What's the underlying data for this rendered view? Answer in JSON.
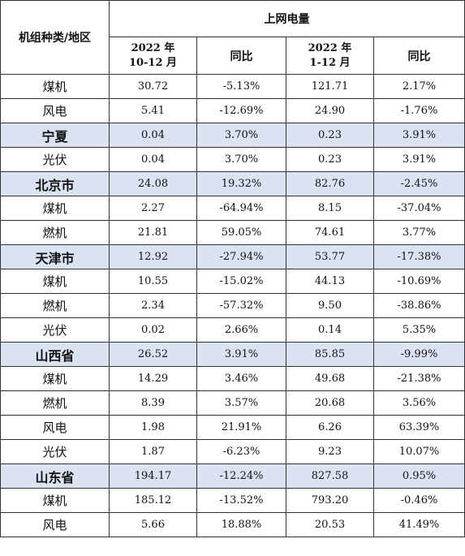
{
  "header": {
    "type_col": "机组种类/地区",
    "group": "上网电量",
    "period1": [
      "2022 年",
      "10-12 月"
    ],
    "yoy1": "同比",
    "period2": [
      "2022 年",
      "1-12 月"
    ],
    "yoy2": "同比"
  },
  "colors": {
    "region_row_bg": "#dbe3f2",
    "border": "#333333"
  },
  "rows": [
    {
      "name": "煤机",
      "region": false,
      "v1": "30.72",
      "y1": "-5.13%",
      "v2": "121.71",
      "y2": "2.17%"
    },
    {
      "name": "风电",
      "region": false,
      "v1": "5.41",
      "y1": "-12.69%",
      "v2": "24.90",
      "y2": "-1.76%"
    },
    {
      "name": "宁夏",
      "region": true,
      "v1": "0.04",
      "y1": "3.70%",
      "v2": "0.23",
      "y2": "3.91%"
    },
    {
      "name": "光伏",
      "region": false,
      "v1": "0.04",
      "y1": "3.70%",
      "v2": "0.23",
      "y2": "3.91%"
    },
    {
      "name": "北京市",
      "region": true,
      "v1": "24.08",
      "y1": "19.32%",
      "v2": "82.76",
      "y2": "-2.45%"
    },
    {
      "name": "煤机",
      "region": false,
      "v1": "2.27",
      "y1": "-64.94%",
      "v2": "8.15",
      "y2": "-37.04%"
    },
    {
      "name": "燃机",
      "region": false,
      "v1": "21.81",
      "y1": "59.05%",
      "v2": "74.61",
      "y2": "3.77%"
    },
    {
      "name": "天津市",
      "region": true,
      "v1": "12.92",
      "y1": "-27.94%",
      "v2": "53.77",
      "y2": "-17.38%"
    },
    {
      "name": "煤机",
      "region": false,
      "v1": "10.55",
      "y1": "-15.02%",
      "v2": "44.13",
      "y2": "-10.69%"
    },
    {
      "name": "燃机",
      "region": false,
      "v1": "2.34",
      "y1": "-57.32%",
      "v2": "9.50",
      "y2": "-38.86%"
    },
    {
      "name": "光伏",
      "region": false,
      "v1": "0.02",
      "y1": "2.66%",
      "v2": "0.14",
      "y2": "5.35%"
    },
    {
      "name": "山西省",
      "region": true,
      "v1": "26.52",
      "y1": "3.91%",
      "v2": "85.85",
      "y2": "-9.99%"
    },
    {
      "name": "煤机",
      "region": false,
      "v1": "14.29",
      "y1": "3.46%",
      "v2": "49.68",
      "y2": "-21.38%"
    },
    {
      "name": "燃机",
      "region": false,
      "v1": "8.39",
      "y1": "3.57%",
      "v2": "20.68",
      "y2": "3.56%"
    },
    {
      "name": "风电",
      "region": false,
      "v1": "1.98",
      "y1": "21.91%",
      "v2": "6.26",
      "y2": "63.39%"
    },
    {
      "name": "光伏",
      "region": false,
      "v1": "1.87",
      "y1": "-6.23%",
      "v2": "9.23",
      "y2": "10.07%"
    },
    {
      "name": "山东省",
      "region": true,
      "v1": "194.17",
      "y1": "-12.24%",
      "v2": "827.58",
      "y2": "0.95%"
    },
    {
      "name": "煤机",
      "region": false,
      "v1": "185.12",
      "y1": "-13.52%",
      "v2": "793.20",
      "y2": "-0.46%"
    },
    {
      "name": "风电",
      "region": false,
      "v1": "5.66",
      "y1": "18.88%",
      "v2": "20.53",
      "y2": "41.49%"
    }
  ]
}
